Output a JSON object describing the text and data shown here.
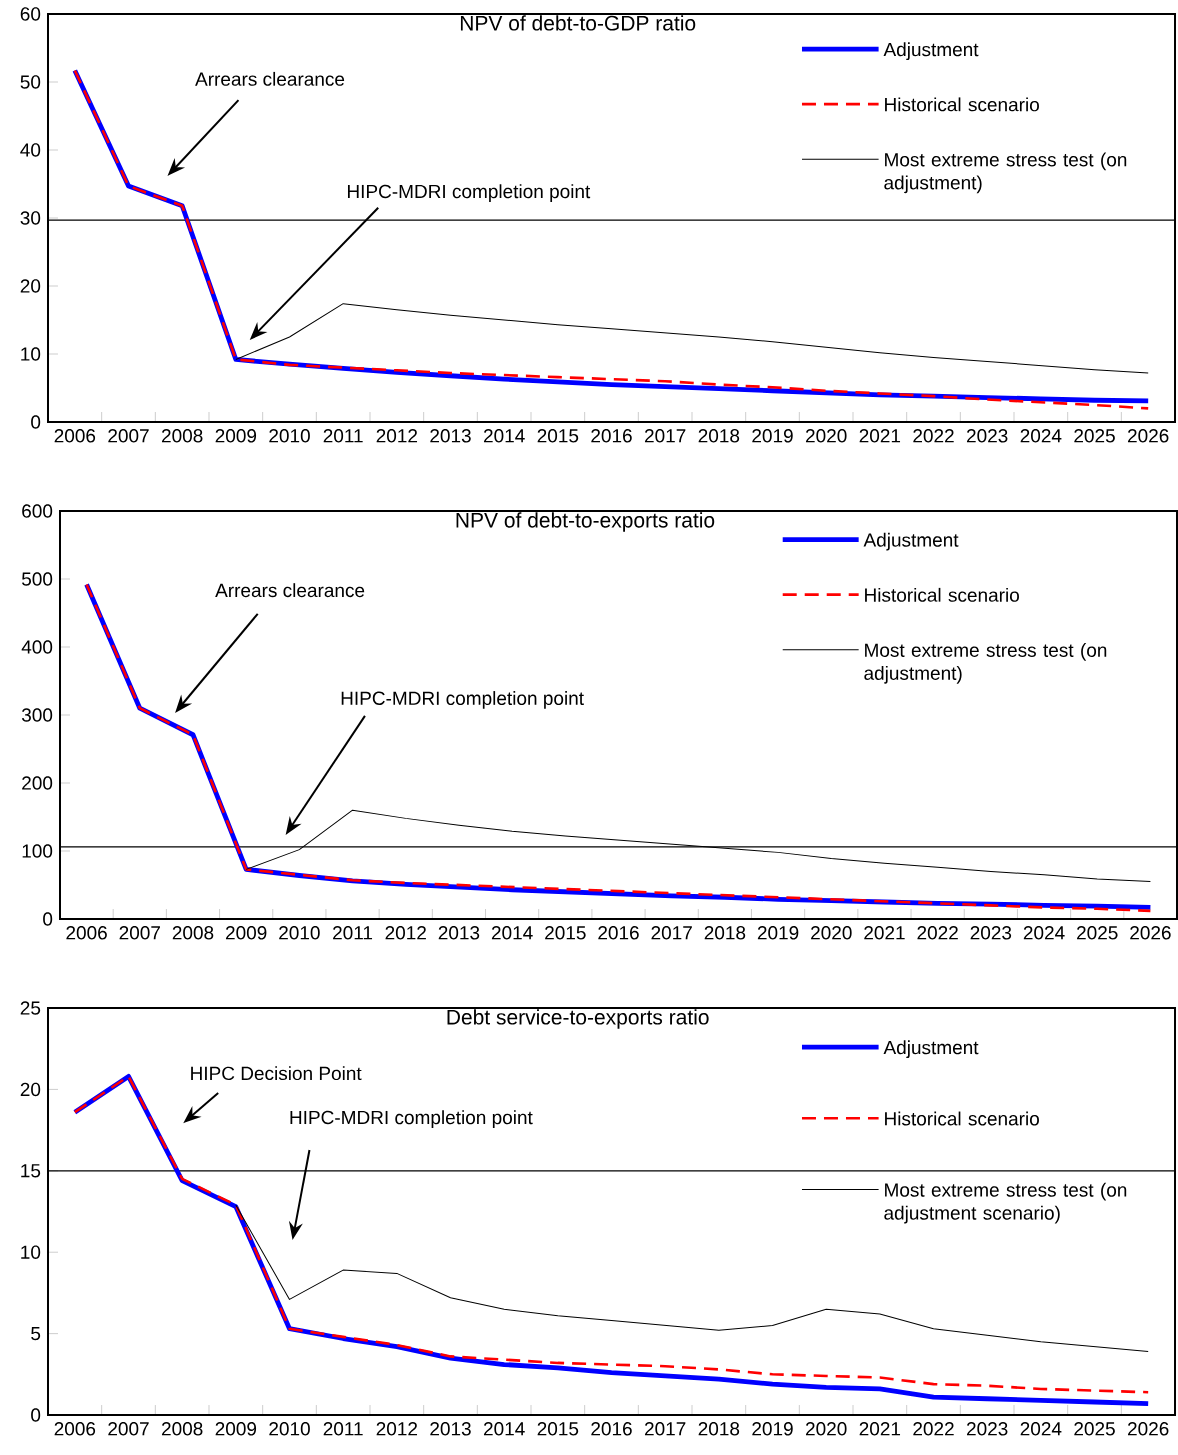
{
  "chart_data": [
    {
      "type": "line",
      "title": "NPV of debt-to-GDP ratio",
      "categories": [
        "2006",
        "2007",
        "2008",
        "2009",
        "2010",
        "2011",
        "2012",
        "2013",
        "2014",
        "2015",
        "2016",
        "2017",
        "2018",
        "2019",
        "2020",
        "2021",
        "2022",
        "2023",
        "2024",
        "2025",
        "2026"
      ],
      "series": [
        {
          "name": "Adjustment",
          "color": "#0000ff",
          "line_style": "solid",
          "values": [
            51.7,
            34.7,
            31.8,
            9.2,
            8.5,
            7.9,
            7.3,
            6.8,
            6.3,
            5.9,
            5.5,
            5.2,
            4.9,
            4.6,
            4.3,
            4.0,
            3.8,
            3.6,
            3.4,
            3.2,
            3.1
          ]
        },
        {
          "name": "Historical scenario",
          "color": "#ff0000",
          "line_style": "dashed",
          "values": [
            51.7,
            34.7,
            31.8,
            9.2,
            8.4,
            8.0,
            7.6,
            7.2,
            6.9,
            6.6,
            6.3,
            6.0,
            5.5,
            5.1,
            4.6,
            4.2,
            3.8,
            3.3,
            2.9,
            2.5,
            2.0
          ]
        },
        {
          "name": "Most extreme stress test (on adjustment)",
          "color": "#000000",
          "line_style": "solid",
          "values": [
            null,
            null,
            null,
            9.2,
            12.5,
            17.4,
            16.5,
            15.7,
            15.0,
            14.3,
            13.7,
            13.1,
            12.5,
            11.8,
            11.0,
            10.2,
            9.5,
            8.9,
            8.3,
            7.7,
            7.2
          ]
        }
      ],
      "ylim": [
        0,
        60
      ],
      "yticks": [
        0,
        10,
        20,
        30,
        40,
        50,
        60
      ],
      "ref_lines": [
        {
          "axis": "y",
          "value": 29.7
        }
      ],
      "annotations": [
        "Arrears clearance",
        "HIPC-MDRI completion point"
      ],
      "legend": "top right"
    },
    {
      "type": "line",
      "title": "NPV of debt-to-exports ratio",
      "categories": [
        "2006",
        "2007",
        "2008",
        "2009",
        "2010",
        "2011",
        "2012",
        "2013",
        "2014",
        "2015",
        "2016",
        "2017",
        "2018",
        "2019",
        "2020",
        "2021",
        "2022",
        "2023",
        "2024",
        "2025",
        "2026"
      ],
      "series": [
        {
          "name": "Adjustment",
          "color": "#0000ff",
          "line_style": "solid",
          "values": [
            492,
            310,
            271,
            73,
            64,
            56,
            51,
            47,
            43,
            40,
            37,
            34,
            32,
            29,
            27,
            25,
            23,
            22,
            20,
            19,
            17
          ]
        },
        {
          "name": "Historical scenario",
          "color": "#ff0000",
          "line_style": "dashed",
          "values": [
            492,
            310,
            271,
            73,
            65,
            57,
            53,
            50,
            47,
            44,
            41,
            38,
            35,
            32,
            29,
            26,
            23,
            20,
            17,
            15,
            12
          ]
        },
        {
          "name": "Most extreme stress test (on adjustment)",
          "color": "#000000",
          "line_style": "solid",
          "values": [
            null,
            null,
            null,
            73,
            102,
            160,
            148,
            138,
            129,
            122,
            116,
            110,
            104,
            98,
            89,
            82,
            76,
            70,
            65,
            59,
            55
          ]
        }
      ],
      "ylim": [
        0,
        600
      ],
      "yticks": [
        0,
        100,
        200,
        300,
        400,
        500,
        600
      ],
      "ref_lines": [
        {
          "axis": "y",
          "value": 106
        }
      ],
      "annotations": [
        "Arrears clearance",
        "HIPC-MDRI completion point"
      ],
      "legend": "top right"
    },
    {
      "type": "line",
      "title": "Debt service-to-exports ratio",
      "categories": [
        "2006",
        "2007",
        "2008",
        "2009",
        "2010",
        "2011",
        "2012",
        "2013",
        "2014",
        "2015",
        "2016",
        "2017",
        "2018",
        "2019",
        "2020",
        "2021",
        "2022",
        "2023",
        "2024",
        "2025",
        "2026"
      ],
      "series": [
        {
          "name": "Adjustment",
          "color": "#0000ff",
          "line_style": "solid",
          "values": [
            18.6,
            20.8,
            14.4,
            12.8,
            5.3,
            4.7,
            4.2,
            3.5,
            3.1,
            2.9,
            2.6,
            2.4,
            2.2,
            1.9,
            1.7,
            1.6,
            1.1,
            1.0,
            0.9,
            0.8,
            0.7
          ]
        },
        {
          "name": "Historical scenario",
          "color": "#ff0000",
          "line_style": "dashed",
          "values": [
            18.6,
            20.8,
            14.5,
            12.9,
            5.3,
            4.8,
            4.3,
            3.6,
            3.4,
            3.2,
            3.1,
            3.0,
            2.8,
            2.5,
            2.4,
            2.3,
            1.9,
            1.8,
            1.6,
            1.5,
            1.4
          ]
        },
        {
          "name": "Most extreme stress test (on adjustment scenario)",
          "color": "#000000",
          "line_style": "solid",
          "values": [
            null,
            null,
            null,
            12.9,
            7.1,
            8.9,
            8.7,
            7.2,
            6.5,
            6.1,
            5.8,
            5.5,
            5.2,
            5.5,
            6.5,
            6.2,
            5.3,
            4.9,
            4.5,
            4.2,
            3.9
          ]
        }
      ],
      "ylim": [
        0,
        25
      ],
      "yticks": [
        0,
        5,
        10,
        15,
        20,
        25
      ],
      "ref_lines": [
        {
          "axis": "y",
          "value": 15
        }
      ],
      "annotations": [
        "HIPC Decision Point",
        "HIPC-MDRI completion point"
      ],
      "legend": "top right"
    }
  ]
}
